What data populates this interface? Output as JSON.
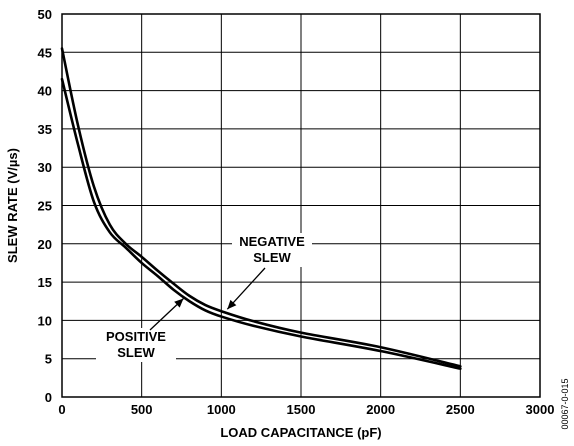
{
  "chart_data": {
    "type": "line",
    "xlabel": "LOAD CAPACITANCE (pF)",
    "ylabel": "SLEW RATE (V/µs)",
    "xlim": [
      0,
      3000
    ],
    "ylim": [
      0,
      50
    ],
    "xticks": [
      "0",
      "500",
      "1000",
      "1500",
      "2000",
      "2500",
      "3000"
    ],
    "yticks": [
      "0",
      "5",
      "10",
      "15",
      "20",
      "25",
      "30",
      "35",
      "40",
      "45",
      "50"
    ],
    "grid": true,
    "series": [
      {
        "name": "NEGATIVE SLEW",
        "x": [
          0,
          100,
          200,
          300,
          400,
          500,
          600,
          700,
          800,
          900,
          1000,
          1200,
          1500,
          2000,
          2500
        ],
        "y": [
          45.5,
          35.5,
          27.5,
          22.5,
          20.0,
          18.3,
          16.5,
          14.8,
          13.2,
          12.0,
          11.2,
          9.9,
          8.4,
          6.5,
          4.0
        ]
      },
      {
        "name": "POSITIVE SLEW",
        "x": [
          0,
          100,
          200,
          300,
          400,
          500,
          600,
          700,
          800,
          900,
          1000,
          1200,
          1500,
          2000,
          2500
        ],
        "y": [
          41.5,
          33.0,
          25.5,
          21.5,
          19.5,
          17.5,
          15.8,
          14.0,
          12.5,
          11.3,
          10.5,
          9.3,
          7.9,
          6.0,
          3.7
        ]
      }
    ],
    "annotations": [
      {
        "text": [
          "NEGATIVE",
          "SLEW"
        ],
        "points_to": "NEGATIVE SLEW",
        "at_x": 1000
      },
      {
        "text": [
          "POSITIVE",
          "SLEW"
        ],
        "points_to": "POSITIVE SLEW",
        "at_x": 750
      }
    ]
  },
  "figure_id": "00067-0-015"
}
